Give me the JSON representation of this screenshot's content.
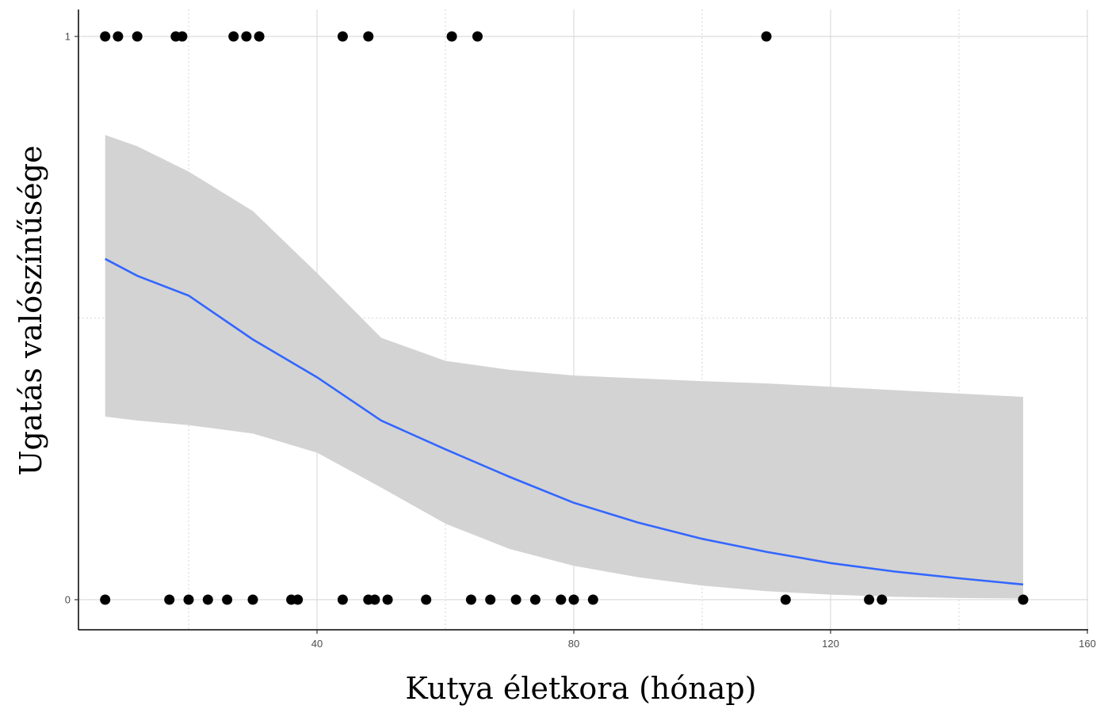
{
  "chart_data": {
    "type": "scatter",
    "title": "",
    "xlabel": "Kutya életkora (hónap)",
    "ylabel": "Ugatás valószínűsége",
    "xlim": [
      0,
      160
    ],
    "ylim": [
      0,
      1
    ],
    "x_ticks": [
      40,
      80,
      120,
      160
    ],
    "x_tick_labels": [
      "40",
      "80",
      "120",
      "160"
    ],
    "y_ticks": [
      0,
      1
    ],
    "y_tick_labels": [
      "0",
      "1"
    ],
    "grid": true,
    "legend": "none",
    "colors": {
      "points": "#000000",
      "fit_line": "#3366ff",
      "ribbon": "#d3d3d3",
      "grid_major": "#dcdcdc",
      "grid_minor": "#dcdcdc",
      "axis": "#000000"
    },
    "points_y1": [
      7,
      9,
      12,
      18,
      19,
      27,
      29,
      31,
      44,
      48,
      61,
      65,
      110
    ],
    "points_y0": [
      7,
      17,
      20,
      23,
      26,
      30,
      36,
      37,
      44,
      48,
      49,
      51,
      57,
      64,
      67,
      71,
      74,
      78,
      80,
      83,
      113,
      126,
      128,
      150
    ],
    "fit": {
      "x": [
        7,
        12,
        20,
        30,
        40,
        50,
        60,
        70,
        80,
        90,
        100,
        110,
        120,
        130,
        140,
        150
      ],
      "y": [
        0.605,
        0.575,
        0.54,
        0.462,
        0.395,
        0.318,
        0.267,
        0.218,
        0.172,
        0.137,
        0.108,
        0.085,
        0.065,
        0.05,
        0.038,
        0.027
      ]
    },
    "ribbon_upper": [
      0.825,
      0.805,
      0.76,
      0.69,
      0.58,
      0.465,
      0.424,
      0.408,
      0.398,
      0.393,
      0.388,
      0.384,
      0.378,
      0.372,
      0.366,
      0.36
    ],
    "ribbon_lower": [
      0.325,
      0.318,
      0.31,
      0.295,
      0.261,
      0.199,
      0.135,
      0.09,
      0.06,
      0.04,
      0.025,
      0.015,
      0.009,
      0.005,
      0.003,
      0.002
    ]
  }
}
